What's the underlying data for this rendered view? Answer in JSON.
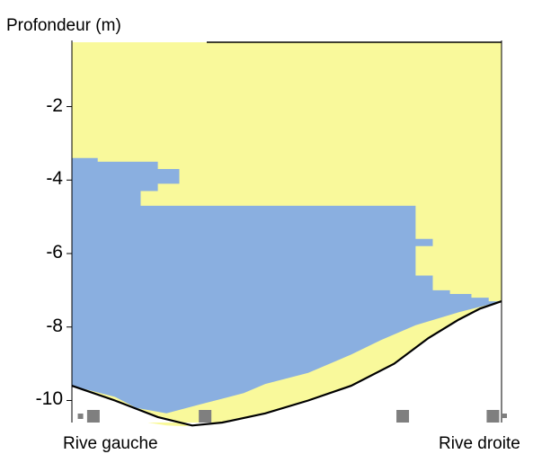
{
  "chart_data": {
    "type": "area",
    "ylabel": "Profondeur (m)",
    "y_ticks": [
      -2,
      -4,
      -6,
      -8,
      -10
    ],
    "ylim": [
      -10.6,
      -0.2
    ],
    "xlim": [
      0,
      100
    ],
    "bank_labels": {
      "left": "Rive gauche",
      "right": "Rive droite"
    },
    "colors": {
      "upper_layer": "#f9f99b",
      "lower_layer": "#8aafe0",
      "bed_line": "#000000",
      "markers": "#7f7f7f",
      "water_surface": "#000000"
    },
    "upper_layer_top": [
      [
        0,
        -0.25
      ],
      [
        100,
        -0.25
      ]
    ],
    "upper_layer_bottom_profile": [
      [
        0,
        -10.2
      ],
      [
        3,
        -10.35
      ],
      [
        12,
        -10.5
      ],
      [
        22,
        -10.68
      ],
      [
        26,
        -10.7
      ],
      [
        32,
        -10.65
      ],
      [
        50,
        -10.2
      ],
      [
        62,
        -9.9
      ],
      [
        75,
        -9.3
      ],
      [
        88,
        -8.2
      ],
      [
        96,
        -7.6
      ],
      [
        100,
        -7.3
      ]
    ],
    "lower_layer_boundary": [
      [
        0,
        -3.4
      ],
      [
        6,
        -3.4
      ],
      [
        6,
        -3.5
      ],
      [
        20,
        -3.5
      ],
      [
        20,
        -3.7
      ],
      [
        25,
        -3.7
      ],
      [
        25,
        -4.1
      ],
      [
        20,
        -4.1
      ],
      [
        20,
        -4.3
      ],
      [
        16,
        -4.3
      ],
      [
        16,
        -4.7
      ],
      [
        80,
        -4.7
      ],
      [
        80,
        -5.6
      ],
      [
        84,
        -5.6
      ],
      [
        84,
        -5.8
      ],
      [
        80,
        -5.8
      ],
      [
        80,
        -6.6
      ],
      [
        84,
        -6.6
      ],
      [
        84,
        -7.0
      ],
      [
        88,
        -7.0
      ],
      [
        88,
        -7.1
      ],
      [
        93,
        -7.1
      ],
      [
        93,
        -7.2
      ],
      [
        97,
        -7.2
      ],
      [
        97,
        -7.3
      ],
      [
        100,
        -7.3
      ]
    ],
    "lower_layer_bottom": [
      [
        0,
        -9.6
      ],
      [
        10,
        -9.9
      ],
      [
        15,
        -10.2
      ],
      [
        22,
        -10.35
      ],
      [
        30,
        -10.1
      ],
      [
        40,
        -9.8
      ],
      [
        45,
        -9.55
      ],
      [
        55,
        -9.25
      ],
      [
        65,
        -8.75
      ],
      [
        72,
        -8.35
      ],
      [
        80,
        -7.95
      ],
      [
        90,
        -7.6
      ],
      [
        100,
        -7.3
      ]
    ],
    "bed_profile": [
      [
        0,
        -9.6
      ],
      [
        10,
        -10.0
      ],
      [
        20,
        -10.45
      ],
      [
        28,
        -10.68
      ],
      [
        35,
        -10.6
      ],
      [
        45,
        -10.35
      ],
      [
        55,
        -10.0
      ],
      [
        65,
        -9.6
      ],
      [
        75,
        -9.0
      ],
      [
        83,
        -8.3
      ],
      [
        90,
        -7.8
      ],
      [
        95,
        -7.5
      ],
      [
        100,
        -7.3
      ]
    ],
    "markers": [
      2,
      5,
      31,
      77,
      98
    ]
  }
}
